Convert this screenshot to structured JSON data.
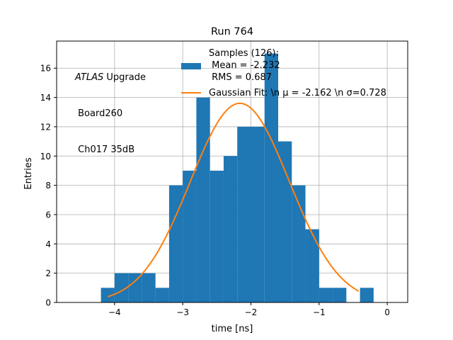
{
  "chart_data": {
    "type": "bar",
    "title": "Run 764",
    "xlabel": "time [ns]",
    "ylabel": "Entries",
    "xlim": [
      -4.85,
      0.3
    ],
    "ylim": [
      0,
      17.85
    ],
    "grid": true,
    "x_ticks": [
      -4,
      -3,
      -2,
      -1,
      0
    ],
    "x_tick_labels": [
      "−4",
      "−3",
      "−2",
      "−1",
      "0"
    ],
    "y_ticks": [
      0,
      2,
      4,
      6,
      8,
      10,
      12,
      14,
      16
    ],
    "y_tick_labels": [
      "0",
      "2",
      "4",
      "6",
      "8",
      "10",
      "12",
      "14",
      "16"
    ],
    "histogram": {
      "bin_edges": [
        -4.2,
        -4.0,
        -3.8,
        -3.6,
        -3.4,
        -3.2,
        -3.0,
        -2.8,
        -2.6,
        -2.4,
        -2.2,
        -2.0,
        -1.8,
        -1.6,
        -1.4,
        -1.2,
        -1.0,
        -0.8,
        -0.6,
        -0.4,
        -0.2,
        0.0
      ],
      "counts": [
        1,
        2,
        2,
        2,
        1,
        8,
        9,
        14,
        9,
        10,
        12,
        12,
        17,
        11,
        8,
        5,
        1,
        1,
        0,
        1,
        0
      ],
      "color": "#1f77b4"
    },
    "series": [
      {
        "name": "Samples (126):\n Mean = -2.232\n RMS = 0.687",
        "type": "histogram",
        "color": "#1f77b4"
      },
      {
        "name": "Gaussian Fit: \\n μ = -2.162 \\n σ=0.728",
        "type": "line",
        "color": "#ff7f0e",
        "model": {
          "amplitude": 13.6,
          "mu": -2.162,
          "sigma": 0.728,
          "x_range": [
            -4.1,
            -0.42
          ]
        }
      }
    ],
    "legend_position": "top-right",
    "annotation": {
      "lines": [
        "ATLAS Upgrade",
        " Board260",
        " Ch017 35dB"
      ]
    }
  }
}
